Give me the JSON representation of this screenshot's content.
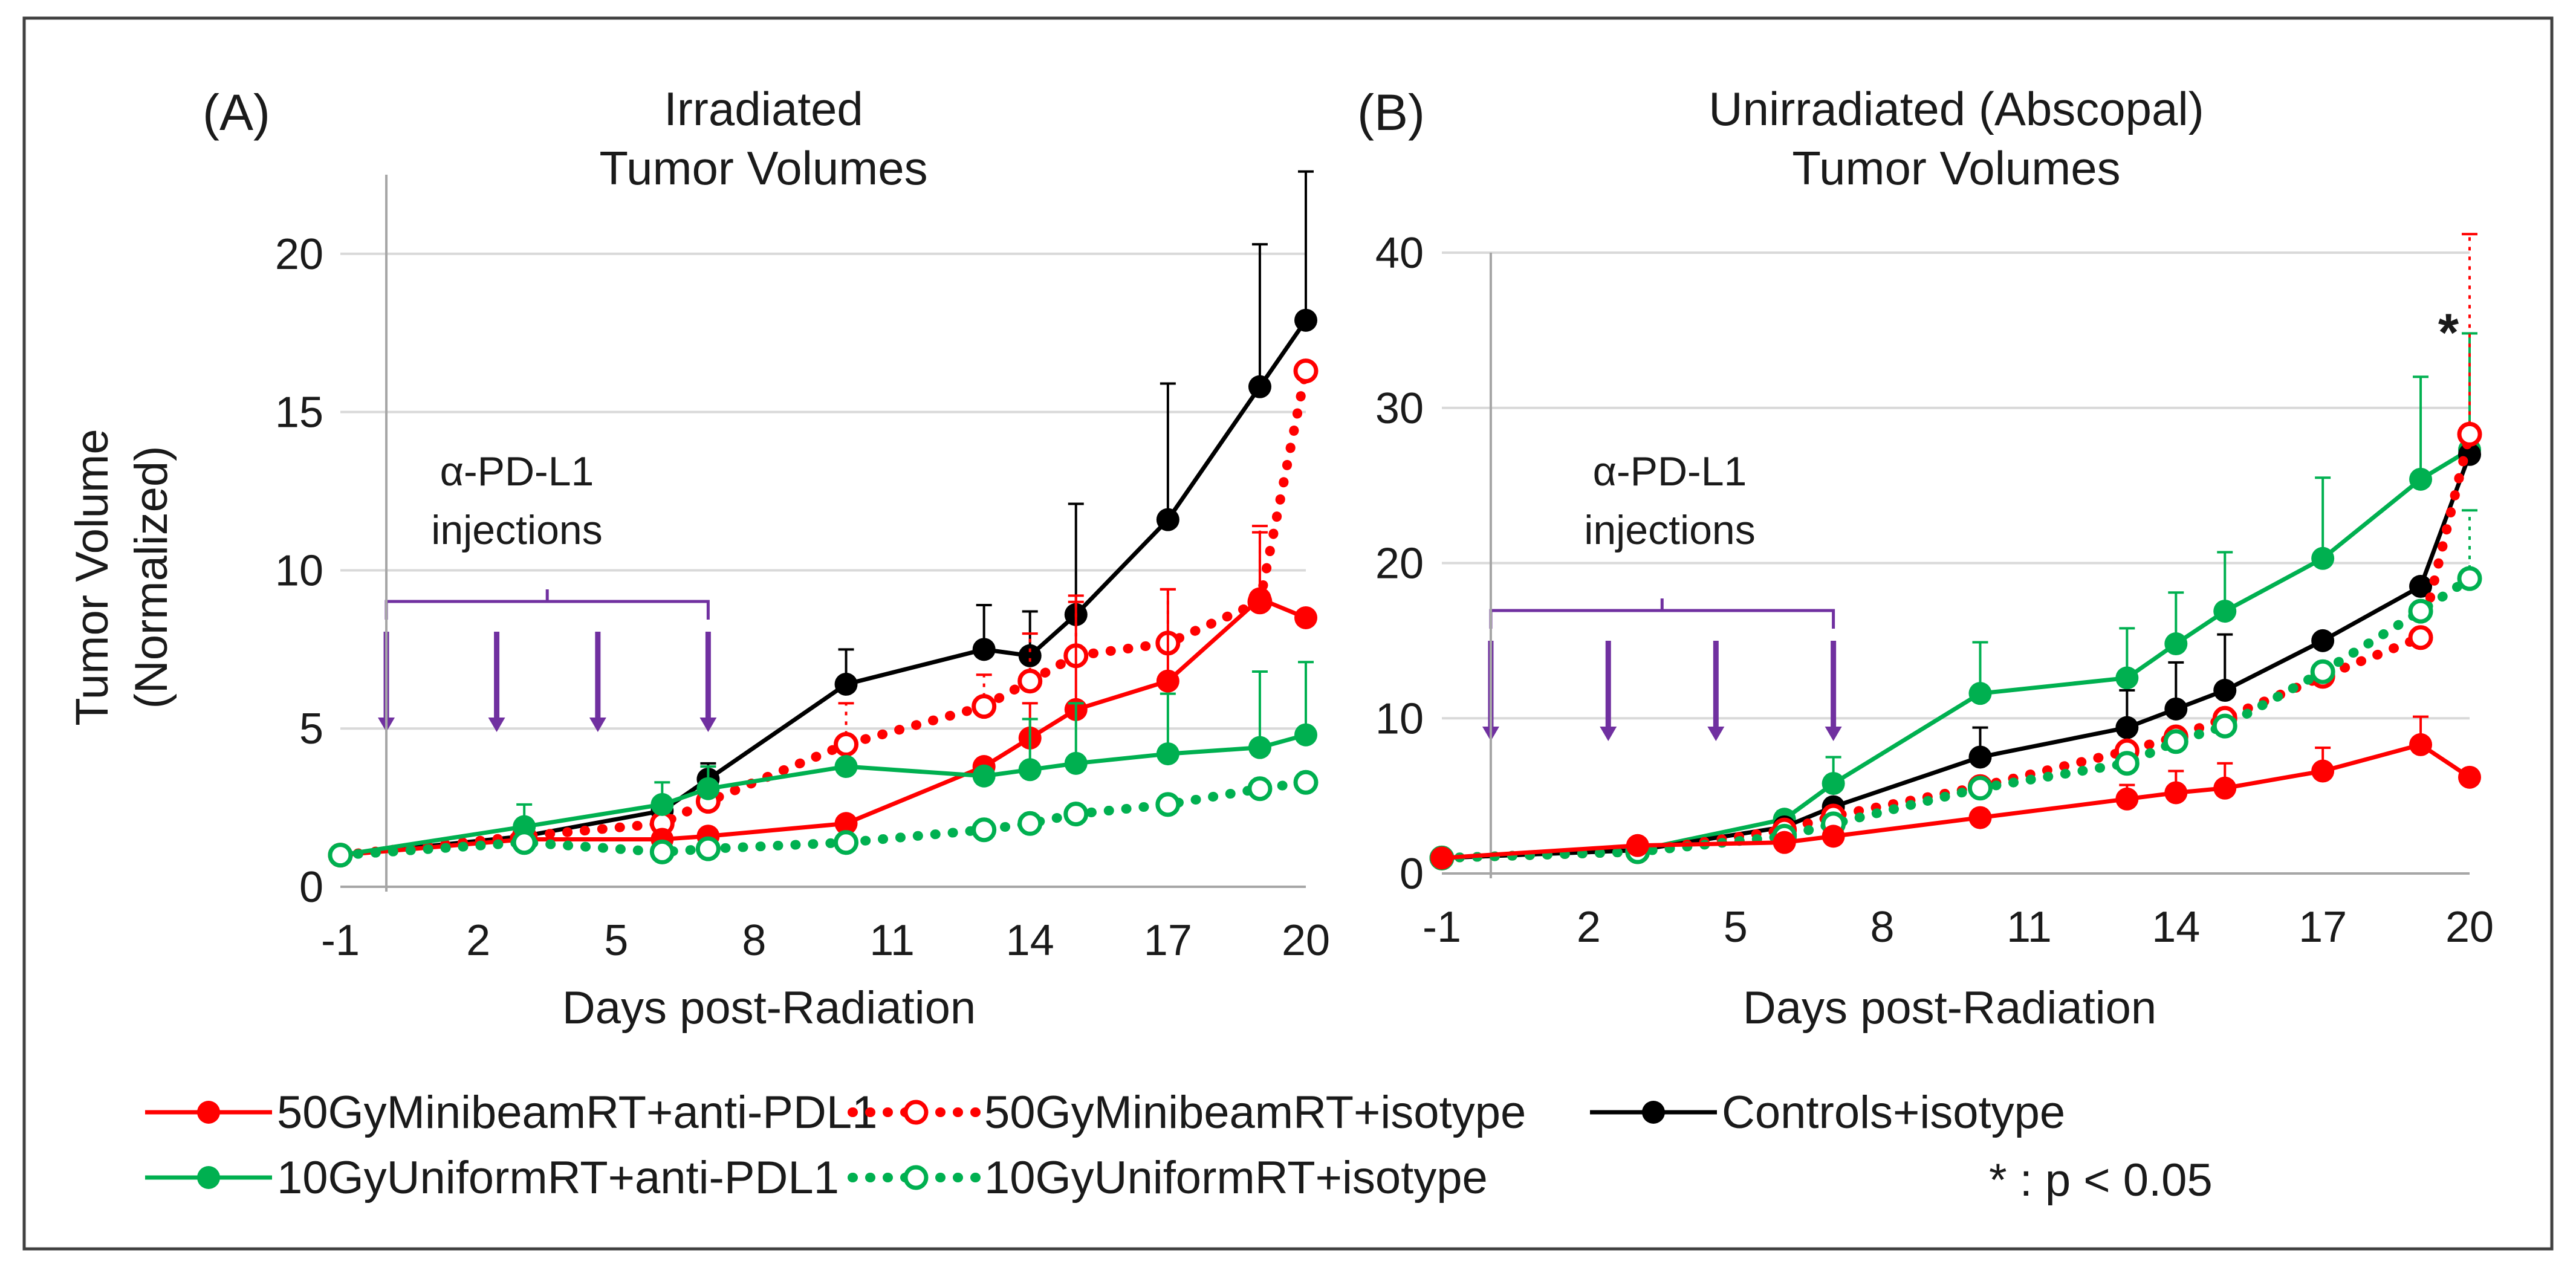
{
  "chart_data": [
    {
      "type": "line",
      "panel_label": "(A)",
      "title": [
        "Irradiated",
        "Tumor Volumes"
      ],
      "xlabel": "Days post-Radiation",
      "ylabel": [
        "Tumor Volume",
        "(Normalized)"
      ],
      "xlim": [
        -1,
        20
      ],
      "ylim": [
        0,
        22.5
      ],
      "xticks": [
        -1,
        2,
        5,
        8,
        11,
        14,
        17,
        20
      ],
      "yticks": [
        0,
        5,
        10,
        15,
        20
      ],
      "grid": "horizontal",
      "annotation": [
        "α-PD-L1",
        "injections"
      ],
      "injection_days": [
        0,
        2.4,
        4.6,
        7
      ],
      "series": [
        {
          "name": "Controls+isotype",
          "color": "#000000",
          "style": "solid",
          "marker": "filled",
          "x": [
            -1,
            3,
            6,
            7,
            10,
            13,
            14,
            15,
            17,
            19,
            20
          ],
          "y": [
            1,
            1.6,
            2.4,
            3.4,
            6.4,
            7.5,
            7.3,
            8.6,
            11.6,
            15.8,
            17.9
          ],
          "err": [
            0,
            0,
            0,
            0.5,
            1.1,
            1.4,
            1.4,
            3.5,
            4.3,
            4.5,
            4.7
          ]
        },
        {
          "name": "50GyMinibeamRT+isotype",
          "color": "#ff0000",
          "style": "dotted",
          "marker": "open",
          "x": [
            -1,
            3,
            6,
            7,
            10,
            13,
            14,
            15,
            17,
            19,
            20
          ],
          "y": [
            1,
            1.6,
            2.0,
            2.7,
            4.5,
            5.7,
            6.5,
            7.3,
            7.7,
            9.0,
            16.3
          ],
          "err": [
            0,
            0,
            0,
            0,
            1.3,
            1.0,
            1.5,
            1.7,
            1.7,
            2.4,
            0
          ]
        },
        {
          "name": "50GyMinibeamRT+anti-PDL1",
          "color": "#ff0000",
          "style": "solid",
          "marker": "filled",
          "x": [
            -1,
            3,
            6,
            7,
            10,
            13,
            14,
            15,
            17,
            19,
            20
          ],
          "y": [
            1,
            1.5,
            1.5,
            1.6,
            2.0,
            3.8,
            4.7,
            5.6,
            6.5,
            9.1,
            8.5
          ],
          "err": [
            0,
            0,
            0,
            0,
            0,
            0,
            1.1,
            3.6,
            2.9,
            2.1,
            0
          ]
        },
        {
          "name": "10GyUniformRT+anti-PDL1",
          "color": "#00b050",
          "style": "solid",
          "marker": "filled",
          "x": [
            -1,
            3,
            6,
            7,
            10,
            13,
            14,
            15,
            17,
            19,
            20
          ],
          "y": [
            1,
            1.9,
            2.6,
            3.1,
            3.8,
            3.5,
            3.7,
            3.9,
            4.2,
            4.4,
            4.8
          ],
          "err": [
            0,
            0.7,
            0.7,
            0.7,
            0,
            0,
            1.6,
            1.9,
            1.9,
            2.4,
            2.3
          ]
        },
        {
          "name": "10GyUniformRT+isotype",
          "color": "#00b050",
          "style": "dotted",
          "marker": "open",
          "x": [
            -1,
            3,
            6,
            7,
            10,
            13,
            14,
            15,
            17,
            19,
            20
          ],
          "y": [
            1,
            1.4,
            1.1,
            1.2,
            1.4,
            1.8,
            2.0,
            2.3,
            2.6,
            3.1,
            3.3
          ],
          "err": [
            0,
            0,
            0,
            0,
            0,
            0,
            0,
            0,
            0,
            0,
            0
          ]
        }
      ]
    },
    {
      "type": "line",
      "panel_label": "(B)",
      "title": [
        "Unirradiated (Abscopal)",
        "Tumor Volumes"
      ],
      "xlabel": "Days post-Radiation",
      "ylabel": "",
      "xlim": [
        -1,
        20
      ],
      "ylim": [
        0,
        40
      ],
      "xticks": [
        -1,
        2,
        5,
        8,
        11,
        14,
        17,
        20
      ],
      "yticks": [
        0,
        10,
        20,
        30,
        40
      ],
      "grid": "horizontal",
      "annotation": [
        "α-PD-L1",
        "injections"
      ],
      "injection_days": [
        0,
        2.4,
        4.6,
        7
      ],
      "significance": {
        "symbol": "*",
        "x": 20
      },
      "series": [
        {
          "name": "10GyUniformRT+anti-PDL1",
          "color": "#00b050",
          "style": "solid",
          "marker": "filled",
          "x": [
            -1,
            3,
            6,
            7,
            10,
            13,
            14,
            15,
            17,
            19,
            20
          ],
          "y": [
            1,
            1.5,
            3.5,
            5.8,
            11.6,
            12.6,
            14.8,
            16.9,
            20.3,
            25.4,
            27.3
          ],
          "err": [
            0,
            0,
            0.5,
            1.7,
            3.3,
            3.2,
            3.3,
            3.8,
            5.2,
            6.6,
            7.5
          ]
        },
        {
          "name": "Controls+isotype",
          "color": "#000000",
          "style": "solid",
          "marker": "filled",
          "x": [
            -1,
            3,
            6,
            7,
            10,
            13,
            14,
            15,
            17,
            19,
            20
          ],
          "y": [
            1,
            1.5,
            3.0,
            4.3,
            7.5,
            9.4,
            10.6,
            11.8,
            15.0,
            18.5,
            27.0
          ],
          "err": [
            0,
            0,
            0,
            0,
            1.9,
            2.4,
            3.0,
            3.6,
            0,
            0,
            0
          ]
        },
        {
          "name": "50GyMinibeamRT+isotype",
          "color": "#ff0000",
          "style": "dotted",
          "marker": "open",
          "x": [
            -1,
            3,
            6,
            7,
            10,
            13,
            14,
            15,
            17,
            19,
            20
          ],
          "y": [
            1,
            1.4,
            2.8,
            3.7,
            5.6,
            7.9,
            8.8,
            10.0,
            12.7,
            15.2,
            28.3
          ],
          "err": [
            0,
            0,
            0,
            0,
            0,
            0,
            0,
            0,
            0,
            0,
            12.9
          ]
        },
        {
          "name": "10GyUniformRT+isotype",
          "color": "#00b050",
          "style": "dotted",
          "marker": "open",
          "x": [
            -1,
            3,
            6,
            7,
            10,
            13,
            14,
            15,
            17,
            19,
            20
          ],
          "y": [
            1,
            1.4,
            2.4,
            3.2,
            5.5,
            7.1,
            8.5,
            9.5,
            13.0,
            16.9,
            19.0
          ],
          "err": [
            0,
            0,
            0,
            0,
            0,
            0,
            0,
            0,
            0,
            0,
            4.4
          ]
        },
        {
          "name": "50GyMinibeamRT+anti-PDL1",
          "color": "#ff0000",
          "style": "solid",
          "marker": "filled",
          "x": [
            -1,
            3,
            6,
            7,
            10,
            13,
            14,
            15,
            17,
            19,
            20
          ],
          "y": [
            1,
            1.8,
            2.0,
            2.4,
            3.6,
            4.8,
            5.2,
            5.5,
            6.6,
            8.3,
            6.2
          ],
          "err": [
            0,
            0,
            0,
            0,
            0,
            0.9,
            1.4,
            1.6,
            1.5,
            1.8,
            0
          ]
        }
      ]
    }
  ],
  "legend": [
    {
      "label": "50GyMinibeamRT+anti-PDL1",
      "color": "#ff0000",
      "style": "solid",
      "marker": "filled"
    },
    {
      "label": "50GyMinibeamRT+isotype",
      "color": "#ff0000",
      "style": "dotted",
      "marker": "open"
    },
    {
      "label": "Controls+isotype",
      "color": "#000000",
      "style": "solid",
      "marker": "filled"
    },
    {
      "label": "10GyUniformRT+anti-PDL1",
      "color": "#00b050",
      "style": "solid",
      "marker": "filled"
    },
    {
      "label": "10GyUniformRT+isotype",
      "color": "#00b050",
      "style": "dotted",
      "marker": "open"
    }
  ],
  "significance_note": "* :  p < 0.05",
  "colors": {
    "injection_arrow": "#7030a0",
    "grid": "#d9d9d9",
    "axis": "#a6a6a6",
    "frame": "#404040"
  }
}
